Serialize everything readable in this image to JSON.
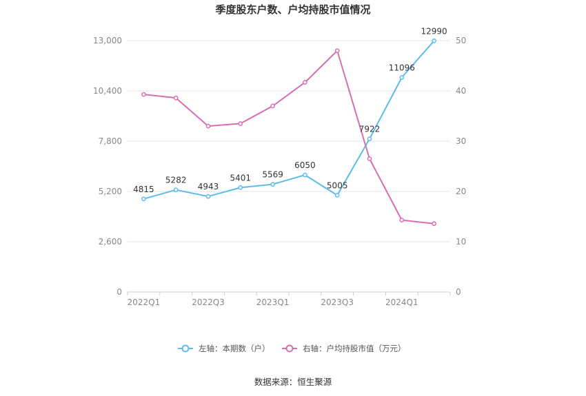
{
  "chart_data": {
    "type": "line",
    "title": "季度股东户数、户均持股市值情况",
    "categories": [
      "2022Q1",
      "2022Q2",
      "2022Q3",
      "2022Q4",
      "2023Q1",
      "2023Q2",
      "2023Q3",
      "2023Q4",
      "2024Q1",
      "2024Q2"
    ],
    "x_tick_labels": [
      "2022Q1",
      "2022Q3",
      "2023Q1",
      "2023Q3",
      "2024Q1"
    ],
    "left_axis": {
      "ticks": [
        "0",
        "2,600",
        "5,200",
        "7,800",
        "10,400",
        "13,000"
      ],
      "range": [
        0,
        13000
      ]
    },
    "right_axis": {
      "ticks": [
        "0",
        "10",
        "20",
        "30",
        "40",
        "50"
      ],
      "range": [
        0,
        50
      ]
    },
    "series": [
      {
        "name": "左轴：本期数（户）",
        "axis": "left",
        "color": "#5bbcea",
        "values": [
          4815,
          5282,
          4943,
          5401,
          5569,
          6050,
          5005,
          7922,
          11096,
          12990
        ],
        "labels": [
          "4815",
          "5282",
          "4943",
          "5401",
          "5569",
          "6050",
          "5005",
          "7922",
          "11096",
          "12990"
        ]
      },
      {
        "name": "右轴：户均持股市值（万元）",
        "axis": "right",
        "color": "#d76eb2",
        "values": [
          39.3,
          38.6,
          33.0,
          33.5,
          37.0,
          41.7,
          48.0,
          26.5,
          14.3,
          13.6
        ]
      }
    ],
    "grid": true,
    "legend_position": "bottom"
  },
  "source": "数据来源：恒生聚源"
}
